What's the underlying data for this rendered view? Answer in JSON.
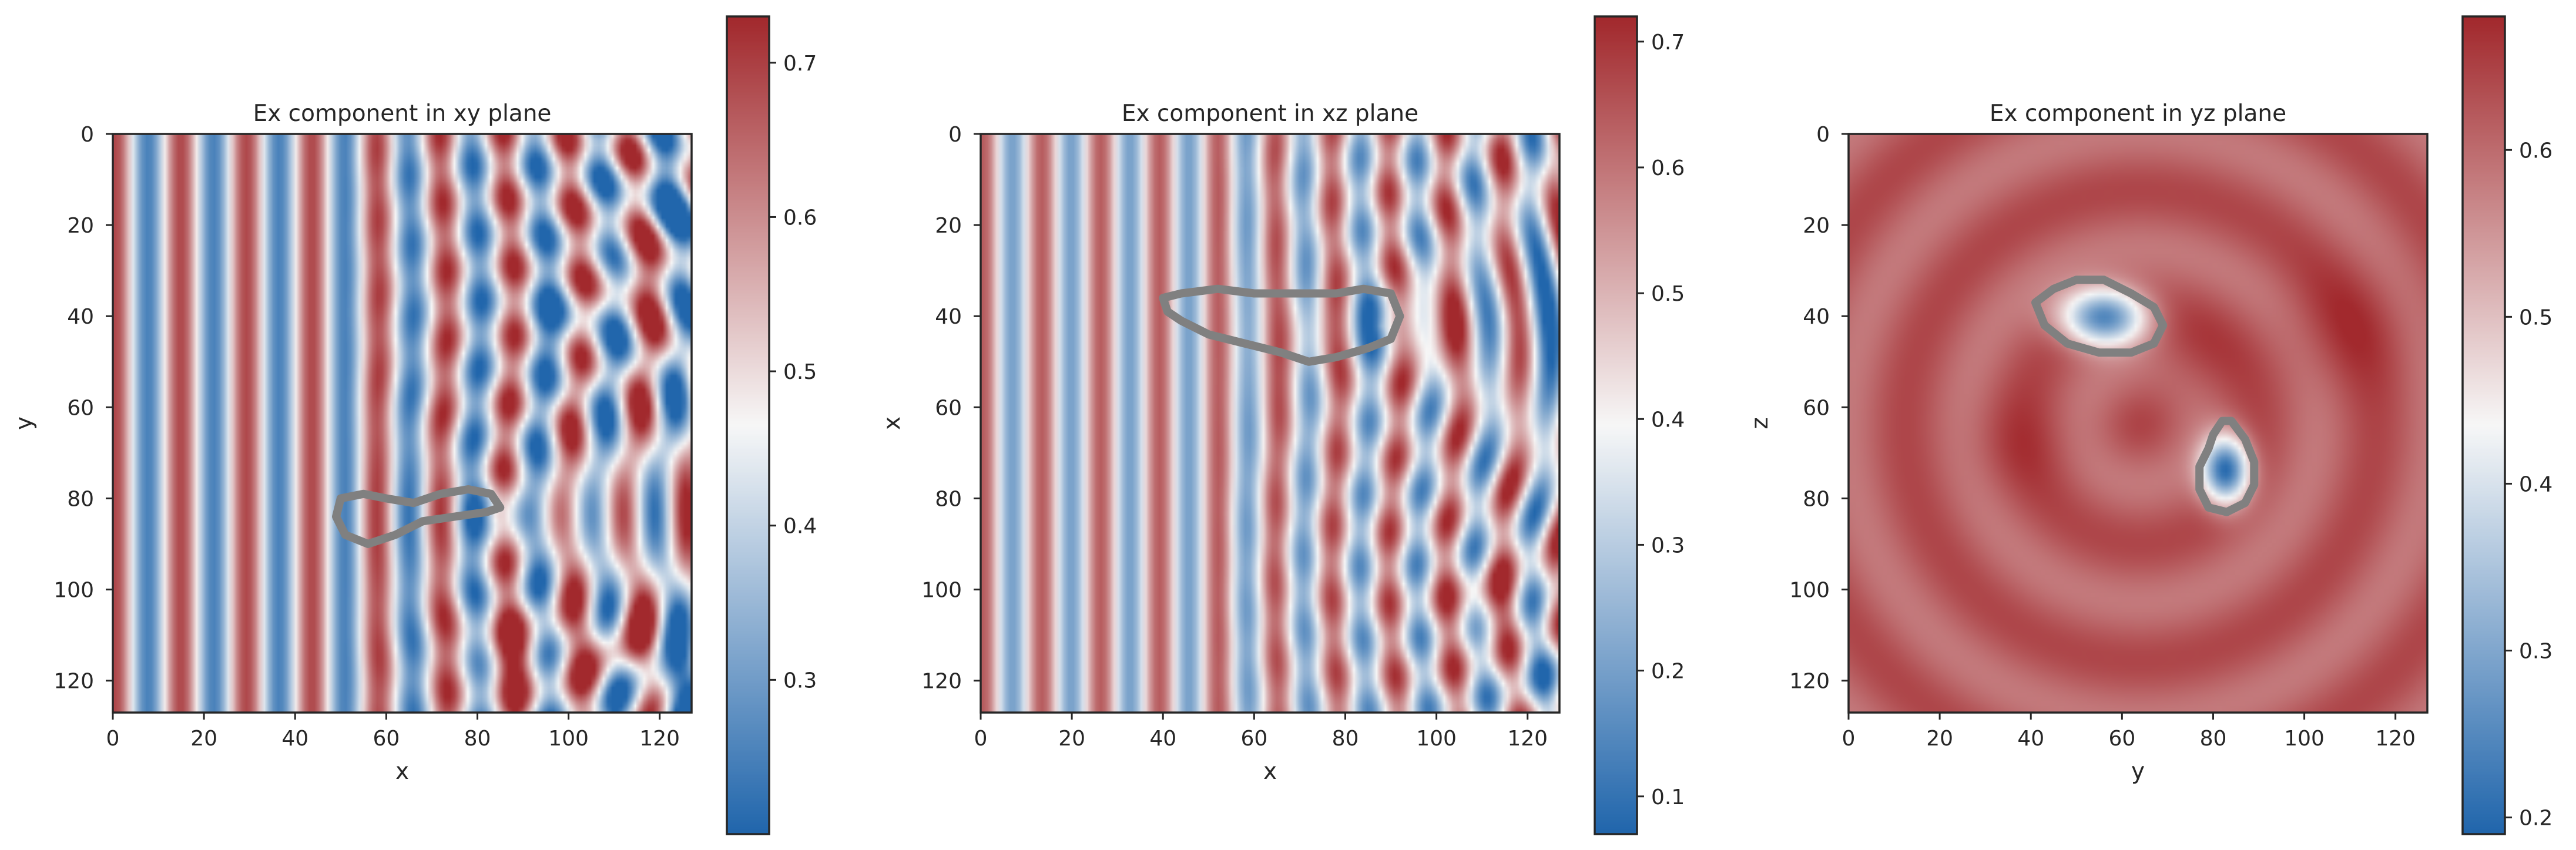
{
  "chart_data": [
    {
      "type": "heatmap",
      "title": "Ex component in xy plane",
      "xlabel": "x",
      "ylabel": "y",
      "xticks": [
        "0",
        "20",
        "40",
        "60",
        "80",
        "100",
        "120"
      ],
      "yticks": [
        "0",
        "20",
        "40",
        "60",
        "80",
        "100",
        "120"
      ],
      "xlim": [
        0,
        127
      ],
      "ylim": [
        127,
        0
      ],
      "grid_size": [
        128,
        128
      ],
      "colormap": "vlag",
      "colors": {
        "low": "#2166ac",
        "mid": "#f7f7f7",
        "high": "#a2292d",
        "contour": "#808080"
      },
      "colorbar": {
        "min": 0.2,
        "max": 0.73,
        "ticks": [
          "0.3",
          "0.4",
          "0.5",
          "0.6",
          "0.7"
        ]
      },
      "field": {
        "type": "plane_wave_with_scatterer",
        "base": 0.47,
        "amp": 0.22,
        "wavelength": 14.5,
        "ripple_amp": 0.16,
        "ripple_wavelength": 15,
        "ripple_phase": 2.0,
        "blob_amp": 0.12,
        "blob_center": [
          84,
          84
        ],
        "hot_spots": [
          [
            88,
            115,
            0.16,
            6
          ],
          [
            113,
            30,
            0.12,
            6
          ],
          [
            112,
            113,
            0.16,
            6
          ]
        ],
        "cold_spots": [
          [
            124,
            122,
            0.2,
            7
          ],
          [
            125,
            14,
            0.15,
            7
          ],
          [
            100,
            40,
            0.1,
            7
          ]
        ]
      },
      "contours": [
        {
          "label": "scatterer boundary",
          "points": [
            [
              49,
              84
            ],
            [
              50,
              80
            ],
            [
              55,
              79
            ],
            [
              60,
              80
            ],
            [
              66,
              81
            ],
            [
              72,
              79
            ],
            [
              78,
              78
            ],
            [
              83,
              79
            ],
            [
              85,
              82
            ],
            [
              82,
              83
            ],
            [
              75,
              84
            ],
            [
              68,
              85
            ],
            [
              62,
              88
            ],
            [
              56,
              90
            ],
            [
              51,
              88
            ]
          ]
        }
      ]
    },
    {
      "type": "heatmap",
      "title": "Ex component in xz plane",
      "xlabel": "x",
      "ylabel": "x",
      "xticks": [
        "0",
        "20",
        "40",
        "60",
        "80",
        "100",
        "120"
      ],
      "yticks": [
        "0",
        "20",
        "40",
        "60",
        "80",
        "100",
        "120"
      ],
      "xlim": [
        0,
        127
      ],
      "ylim": [
        127,
        0
      ],
      "grid_size": [
        128,
        128
      ],
      "colormap": "vlag",
      "colors": {
        "low": "#2166ac",
        "mid": "#f7f7f7",
        "high": "#a2292d",
        "contour": "#808080"
      },
      "colorbar": {
        "min": 0.07,
        "max": 0.72,
        "ticks": [
          "0.1",
          "0.2",
          "0.3",
          "0.4",
          "0.5",
          "0.6",
          "0.7"
        ]
      },
      "field": {
        "type": "plane_wave_with_scatterer",
        "base": 0.42,
        "amp": 0.22,
        "wavelength": 13,
        "ripple_amp": 0.14,
        "ripple_wavelength": 16,
        "ripple_phase": 1.0,
        "blob_amp": 0.18,
        "blob_center": [
          88,
          42
        ],
        "hot_spots": [
          [
            101,
            42,
            0.18,
            7
          ],
          [
            112,
            105,
            0.14,
            6
          ],
          [
            70,
            45,
            0.08,
            6
          ]
        ],
        "cold_spots": [
          [
            117,
            40,
            0.1,
            7
          ],
          [
            122,
            115,
            0.08,
            6
          ]
        ]
      },
      "contours": [
        {
          "label": "scatterer boundary",
          "points": [
            [
              40,
              36
            ],
            [
              44,
              35
            ],
            [
              52,
              34
            ],
            [
              60,
              35
            ],
            [
              70,
              35
            ],
            [
              78,
              35
            ],
            [
              84,
              34
            ],
            [
              90,
              35
            ],
            [
              92,
              40
            ],
            [
              90,
              45
            ],
            [
              85,
              47
            ],
            [
              78,
              49
            ],
            [
              72,
              50
            ],
            [
              66,
              48
            ],
            [
              58,
              46
            ],
            [
              50,
              44
            ],
            [
              44,
              41
            ],
            [
              41,
              39
            ]
          ]
        }
      ]
    },
    {
      "type": "heatmap",
      "title": "Ex component in yz plane",
      "xlabel": "y",
      "ylabel": "z",
      "xticks": [
        "0",
        "20",
        "40",
        "60",
        "80",
        "100",
        "120"
      ],
      "yticks": [
        "0",
        "20",
        "40",
        "60",
        "80",
        "100",
        "120"
      ],
      "xlim": [
        0,
        127
      ],
      "ylim": [
        127,
        0
      ],
      "grid_size": [
        128,
        128
      ],
      "colormap": "vlag",
      "colors": {
        "low": "#2166ac",
        "mid": "#f7f7f7",
        "high": "#a2292d",
        "contour": "#808080"
      },
      "colorbar": {
        "min": 0.19,
        "max": 0.68,
        "ticks": [
          "0.2",
          "0.3",
          "0.4",
          "0.5",
          "0.6"
        ]
      },
      "field": {
        "type": "cross_section",
        "base": 0.615,
        "ring_amp": 0.03,
        "ring_wavelength": 26,
        "scatterers": [
          [
            56,
            40,
            9,
            6,
            0.4
          ],
          [
            83,
            74,
            5,
            7,
            0.43
          ]
        ],
        "hot_spots": [
          [
            110,
            42,
            0.04,
            10
          ],
          [
            75,
            50,
            0.03,
            8
          ],
          [
            38,
            68,
            0.03,
            8
          ]
        ]
      },
      "contours": [
        {
          "label": "scatterer boundary",
          "points": [
            [
              41,
              37
            ],
            [
              45,
              34
            ],
            [
              50,
              32
            ],
            [
              56,
              32
            ],
            [
              62,
              35
            ],
            [
              67,
              38
            ],
            [
              69,
              42
            ],
            [
              67,
              46
            ],
            [
              62,
              48
            ],
            [
              55,
              48
            ],
            [
              48,
              46
            ],
            [
              43,
              42
            ]
          ]
        },
        {
          "label": "scatterer boundary",
          "points": [
            [
              80,
              66
            ],
            [
              82,
              63
            ],
            [
              84,
              63
            ],
            [
              87,
              67
            ],
            [
              89,
              72
            ],
            [
              89,
              77
            ],
            [
              87,
              81
            ],
            [
              83,
              83
            ],
            [
              79,
              82
            ],
            [
              77,
              78
            ],
            [
              77,
              73
            ],
            [
              79,
              69
            ]
          ]
        }
      ]
    }
  ]
}
